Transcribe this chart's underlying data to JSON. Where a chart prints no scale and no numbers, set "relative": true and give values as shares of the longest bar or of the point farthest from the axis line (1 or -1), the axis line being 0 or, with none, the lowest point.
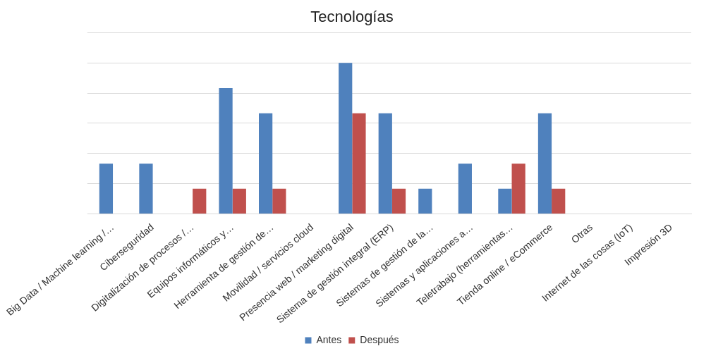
{
  "chart_data": {
    "type": "bar",
    "title": "Tecnologías",
    "relative": true,
    "grid": "y",
    "legend": "bottom",
    "categories": [
      "Big Data / Machine learning /…",
      "Ciberseguridad",
      "Digitalización de procesos /…",
      "Equipos informáticos y…",
      "Herramienta de gestión de…",
      "Movilidad / servicios cloud",
      "Presencia web / marketing digital",
      "Sistema de gestión integral (ERP)",
      "Sistemas de gestión de la…",
      "Sistemas y aplicaciones a…",
      "Teletrabajo (herramientas…",
      "Tienda online / eCommerce",
      "Otras",
      "Internet de las cosas (IoT)",
      "Impresión 3D"
    ],
    "series": [
      {
        "name": "Antes",
        "color": "#4f81bd",
        "values": [
          0.333,
          0.333,
          0,
          0.833,
          0.667,
          0,
          1,
          0.667,
          0.167,
          0.333,
          0.167,
          0.667,
          0,
          0,
          0
        ]
      },
      {
        "name": "Después",
        "color": "#c0504d",
        "values": [
          0,
          0,
          0.167,
          0.167,
          0.167,
          0,
          0.667,
          0.167,
          0,
          0,
          0.333,
          0.167,
          0,
          0,
          0
        ]
      }
    ]
  }
}
